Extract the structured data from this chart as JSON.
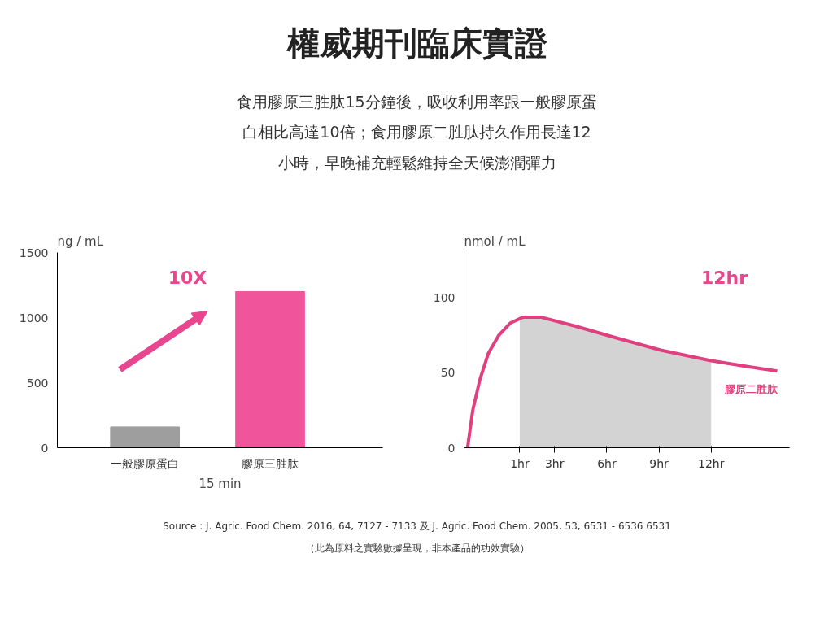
{
  "chart_data": [
    {
      "type": "bar",
      "title": "權威期刊臨床實證",
      "subtitle": "食用膠原三胜肽15分鐘後，吸收利用率跟一般膠原蛋白相比高達10倍；食用膠原二胜肽持久作用長達12小時，早晚補充輕鬆維持全天候澎潤彈力",
      "ylabel": "ng / mL",
      "xlabel": "15 min",
      "categories": [
        "一般膠原蛋白",
        "膠原三胜肽"
      ],
      "values": [
        160,
        1200
      ],
      "colors": [
        "#9e9e9e",
        "#f0549a"
      ],
      "ylim": [
        0,
        1500
      ],
      "yticks": [
        0,
        500,
        1000,
        1500
      ],
      "grid": false,
      "legend": false,
      "annotations": [
        "10X"
      ]
    },
    {
      "type": "line",
      "ylabel": "nmol / mL",
      "xlim": [
        -2.2,
        16.5
      ],
      "ylim": [
        0,
        130
      ],
      "yticks": [
        0,
        50,
        100
      ],
      "xticks": [
        {
          "value": 1,
          "label": "1hr"
        },
        {
          "value": 3,
          "label": "3hr"
        },
        {
          "value": 6,
          "label": "6hr"
        },
        {
          "value": 9,
          "label": "9hr"
        },
        {
          "value": 12,
          "label": "12hr"
        }
      ],
      "grid": false,
      "legend": false,
      "series": [
        {
          "type": "area",
          "color": "#d3d3d3",
          "x": [
            1,
            2.2,
            4.2,
            6.6,
            9.1,
            12
          ],
          "values": [
            86,
            87,
            81,
            73,
            65,
            58
          ]
        },
        {
          "name": "膠原二胜肽",
          "color": "#e0407f",
          "x": [
            -2,
            -1.7,
            -1.3,
            -0.8,
            -0.2,
            0.45,
            1.2,
            2.2,
            4.2,
            6.6,
            9.1,
            12,
            14.1,
            15.8
          ],
          "values": [
            0,
            25,
            45,
            63,
            75,
            83,
            87,
            87,
            81,
            73,
            65,
            58,
            54,
            51
          ]
        }
      ],
      "annotations": [
        "12hr",
        "Source : J. Agric. Food Chem. 2016, 64, 7127 - 7133 及 J. Agric. Food Chem. 2005, 53, 6531 - 6536 6531",
        "（此為原料之實驗數據呈現，非本產品的功效實驗）"
      ]
    }
  ]
}
